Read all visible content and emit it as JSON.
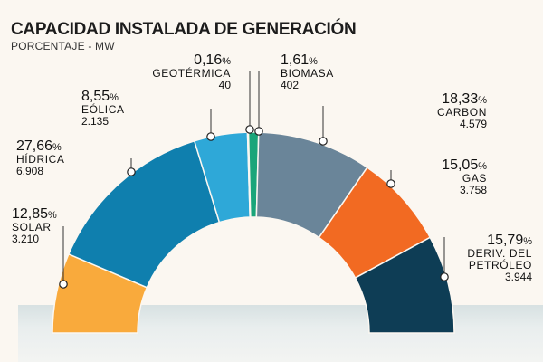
{
  "title": "CAPACIDAD INSTALADA DE GENERACIÓN",
  "subtitle": "PORCENTAJE -  MW",
  "chart_data": {
    "type": "pie",
    "subtype": "half-donut",
    "title": "CAPACIDAD INSTALADA DE GENERACIÓN",
    "subtitle": "PORCENTAJE -  MW",
    "slices": [
      {
        "name": "SOLAR",
        "pct": "12,85",
        "pct_value": 12.85,
        "mw": "3.210",
        "color": "#f9aa3c"
      },
      {
        "name": "HÍDRICA",
        "pct": "27,66",
        "pct_value": 27.66,
        "mw": "6.908",
        "color": "#0f7fae"
      },
      {
        "name": "EÓLICA",
        "pct": "8,55",
        "pct_value": 8.55,
        "mw": "2.135",
        "color": "#2ea8d8"
      },
      {
        "name": "GEOTÉRMICA",
        "pct": "0,16",
        "pct_value": 0.16,
        "mw": "40",
        "color": "#8a8f7a"
      },
      {
        "name": "BIOMASA",
        "pct": "1,61",
        "pct_value": 1.61,
        "mw": "402",
        "color": "#1aa57a"
      },
      {
        "name": "CARBON",
        "pct": "18,33",
        "pct_value": 18.33,
        "mw": "4.579",
        "color": "#6a8599"
      },
      {
        "name": "GAS",
        "pct": "15,05",
        "pct_value": 15.05,
        "mw": "3.758",
        "color": "#f26a22"
      },
      {
        "name": "DERIV. DEL PETRÓLEO",
        "name_lines": [
          "DERIV. DEL",
          "PETRÓLEO"
        ],
        "pct": "15,79",
        "pct_value": 15.79,
        "mw": "3.944",
        "color": "#0e3d55"
      }
    ]
  }
}
